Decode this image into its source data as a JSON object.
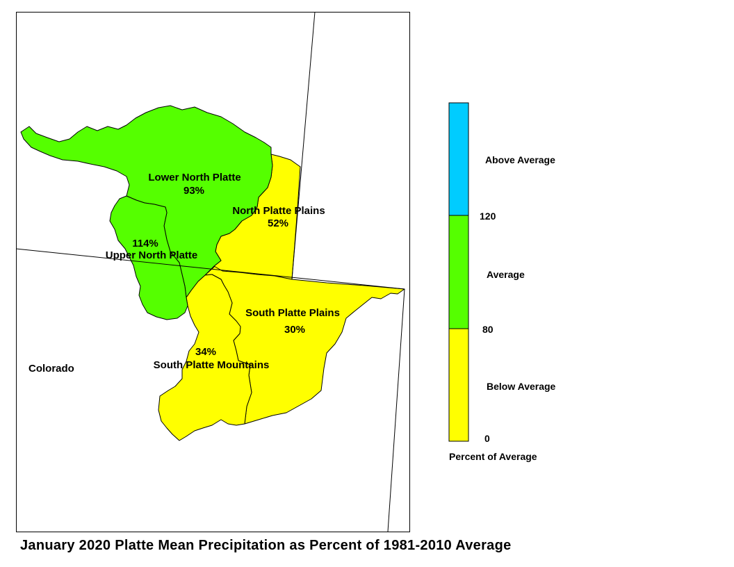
{
  "title": "January 2020 Platte Mean Precipitation as Percent of 1981-2010 Average",
  "state_label": "Colorado",
  "colors": {
    "above": "#00ccff",
    "average": "#55ff00",
    "below": "#ffff00",
    "outline": "#000000"
  },
  "basins": [
    {
      "id": "lower-north-platte",
      "name": "Lower North Platte",
      "value_label": "93%",
      "percent": 93,
      "category": "average"
    },
    {
      "id": "north-platte-plains",
      "name": "North Platte Plains",
      "value_label": "52%",
      "percent": 52,
      "category": "below"
    },
    {
      "id": "upper-north-platte",
      "name": "Upper North Platte",
      "value_label": "114%",
      "percent": 114,
      "category": "average"
    },
    {
      "id": "south-platte-plains",
      "name": "South Platte Plains",
      "value_label": "30%",
      "percent": 30,
      "category": "below"
    },
    {
      "id": "south-platte-mountains",
      "name": "South Platte Mountains",
      "value_label": "34%",
      "percent": 34,
      "category": "below"
    }
  ],
  "legend": {
    "title": "Percent of Average",
    "categories": [
      {
        "label": "Above Average",
        "color": "#00ccff"
      },
      {
        "label": "Average",
        "color": "#55ff00"
      },
      {
        "label": "Below Average",
        "color": "#ffff00"
      }
    ],
    "breaks": [
      "120",
      "80",
      "0"
    ]
  }
}
